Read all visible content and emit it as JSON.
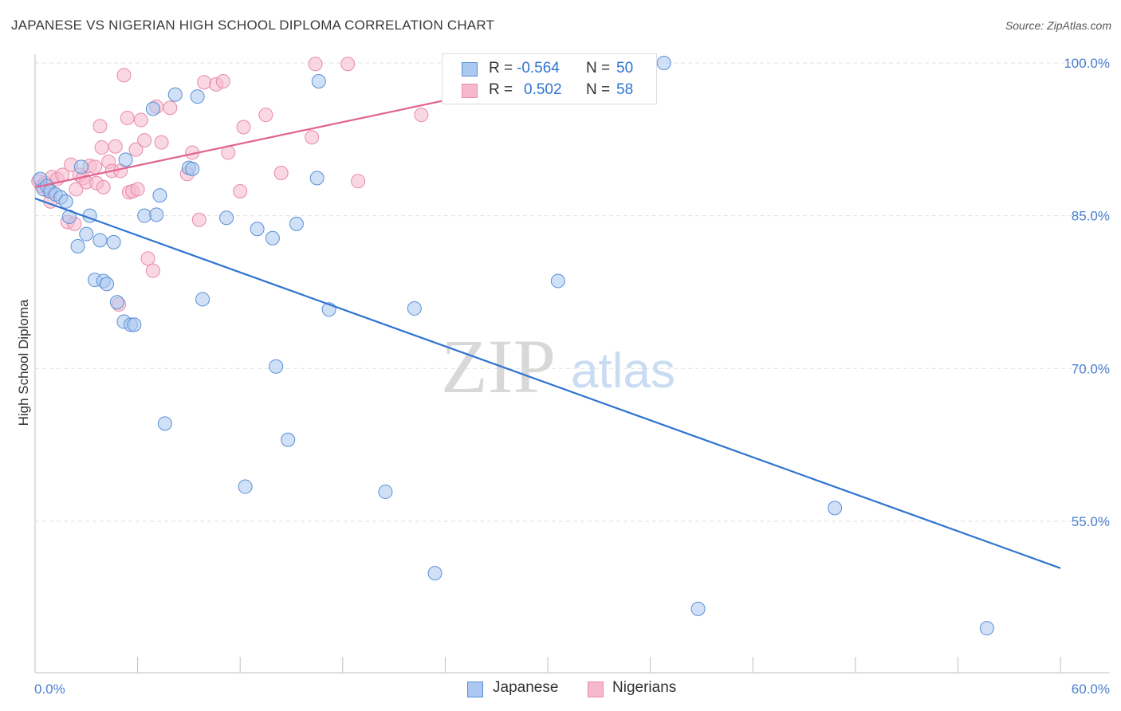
{
  "title": "JAPANESE VS NIGERIAN HIGH SCHOOL DIPLOMA CORRELATION CHART",
  "source": "Source: ZipAtlas.com",
  "watermark": {
    "zip": "ZIP",
    "atlas": "atlas"
  },
  "legend": {
    "rows": [
      {
        "r_label": "R =",
        "r_value": "-0.564",
        "n_label": "N =",
        "n_value": "50"
      },
      {
        "r_label": "R =",
        "r_value": "0.502",
        "n_label": "N =",
        "n_value": "58"
      }
    ]
  },
  "bottom_legend": {
    "japanese": "Japanese",
    "nigerians": "Nigerians"
  },
  "colors": {
    "japanese_fill": "#aac8f0",
    "japanese_stroke": "#5b8fd6",
    "japanese_line": "#2f74d0",
    "nigerian_fill": "#f6b8cc",
    "nigerian_stroke": "#e98aa8",
    "nigerian_line": "#e0648e",
    "tick_text": "#4a7fd0",
    "grid": "#e2e2e2"
  },
  "chart_data": {
    "type": "scatter",
    "title": "JAPANESE VS NIGERIAN HIGH SCHOOL DIPLOMA CORRELATION CHART",
    "xlabel": "",
    "ylabel": "High School Diploma",
    "xlim": [
      0,
      60
    ],
    "ylim": [
      40,
      102
    ],
    "x_tick_labels": [
      "0.0%",
      "60.0%"
    ],
    "y_ticks": [
      55,
      70,
      85,
      100
    ],
    "y_tick_labels": [
      "55.0%",
      "70.0%",
      "85.0%",
      "100.0%"
    ],
    "grid": true,
    "series": [
      {
        "name": "Japanese",
        "r": -0.564,
        "n": 50,
        "trend": [
          [
            0,
            86.7
          ],
          [
            60,
            50.4
          ]
        ],
        "points": [
          [
            0.3,
            88.6
          ],
          [
            0.5,
            87.6
          ],
          [
            0.7,
            87.9
          ],
          [
            0.9,
            87.4
          ],
          [
            1.2,
            87.1
          ],
          [
            1.5,
            86.8
          ],
          [
            1.8,
            86.4
          ],
          [
            2.0,
            84.9
          ],
          [
            2.5,
            82.0
          ],
          [
            2.7,
            89.8
          ],
          [
            3.0,
            83.2
          ],
          [
            3.2,
            85.0
          ],
          [
            3.5,
            78.7
          ],
          [
            3.8,
            82.6
          ],
          [
            4.0,
            78.6
          ],
          [
            4.2,
            78.3
          ],
          [
            4.6,
            82.4
          ],
          [
            4.8,
            76.5
          ],
          [
            5.2,
            74.6
          ],
          [
            5.6,
            74.3
          ],
          [
            5.3,
            90.5
          ],
          [
            5.8,
            74.3
          ],
          [
            6.4,
            85.0
          ],
          [
            6.9,
            95.5
          ],
          [
            7.1,
            85.1
          ],
          [
            7.3,
            87.0
          ],
          [
            7.6,
            64.6
          ],
          [
            8.2,
            96.9
          ],
          [
            9.0,
            89.7
          ],
          [
            9.2,
            89.6
          ],
          [
            9.5,
            96.7
          ],
          [
            9.8,
            76.8
          ],
          [
            11.2,
            84.8
          ],
          [
            12.3,
            58.4
          ],
          [
            13.0,
            83.7
          ],
          [
            13.9,
            82.8
          ],
          [
            14.1,
            70.2
          ],
          [
            14.8,
            63.0
          ],
          [
            15.3,
            84.2
          ],
          [
            16.5,
            88.7
          ],
          [
            16.6,
            98.2
          ],
          [
            17.2,
            75.8
          ],
          [
            20.5,
            57.9
          ],
          [
            22.2,
            75.9
          ],
          [
            23.4,
            49.9
          ],
          [
            30.6,
            78.6
          ],
          [
            36.8,
            100.0
          ],
          [
            38.8,
            46.4
          ],
          [
            46.8,
            56.3
          ],
          [
            55.7,
            44.5
          ]
        ]
      },
      {
        "name": "Nigerians",
        "r": 0.502,
        "n": 58,
        "trend": [
          [
            0,
            87.8
          ],
          [
            36,
            100.6
          ]
        ],
        "points": [
          [
            0.2,
            88.4
          ],
          [
            0.4,
            87.9
          ],
          [
            0.6,
            88.2
          ],
          [
            0.8,
            87.4
          ],
          [
            0.9,
            86.4
          ],
          [
            1.0,
            88.8
          ],
          [
            1.3,
            88.6
          ],
          [
            1.6,
            89.0
          ],
          [
            1.9,
            84.4
          ],
          [
            2.1,
            90.0
          ],
          [
            2.3,
            84.2
          ],
          [
            2.4,
            87.6
          ],
          [
            2.6,
            89.0
          ],
          [
            2.8,
            88.7
          ],
          [
            3.0,
            88.3
          ],
          [
            3.2,
            89.9
          ],
          [
            3.5,
            89.8
          ],
          [
            3.6,
            88.2
          ],
          [
            3.8,
            93.8
          ],
          [
            3.9,
            91.7
          ],
          [
            4.0,
            87.8
          ],
          [
            4.3,
            90.3
          ],
          [
            4.5,
            89.4
          ],
          [
            4.7,
            91.8
          ],
          [
            4.9,
            76.3
          ],
          [
            5.0,
            89.4
          ],
          [
            5.2,
            98.8
          ],
          [
            5.4,
            94.6
          ],
          [
            5.5,
            87.3
          ],
          [
            5.7,
            87.4
          ],
          [
            5.9,
            91.5
          ],
          [
            6.0,
            87.6
          ],
          [
            6.2,
            94.4
          ],
          [
            6.4,
            92.4
          ],
          [
            6.6,
            80.8
          ],
          [
            6.9,
            79.6
          ],
          [
            7.1,
            95.7
          ],
          [
            7.4,
            92.2
          ],
          [
            7.9,
            95.6
          ],
          [
            8.9,
            89.1
          ],
          [
            9.2,
            91.2
          ],
          [
            9.6,
            84.6
          ],
          [
            9.9,
            98.1
          ],
          [
            10.6,
            97.9
          ],
          [
            11.0,
            98.2
          ],
          [
            11.3,
            91.2
          ],
          [
            12.0,
            87.4
          ],
          [
            12.2,
            93.7
          ],
          [
            13.5,
            94.9
          ],
          [
            14.4,
            89.2
          ],
          [
            16.2,
            92.7
          ],
          [
            16.4,
            99.9
          ],
          [
            18.3,
            99.9
          ],
          [
            18.9,
            88.4
          ],
          [
            22.6,
            94.9
          ],
          [
            28.0,
            99.9
          ],
          [
            31.4,
            99.8
          ],
          [
            35.8,
            99.9
          ]
        ]
      }
    ]
  }
}
